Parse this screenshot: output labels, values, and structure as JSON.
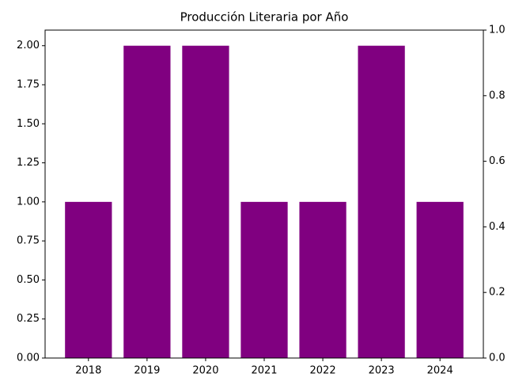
{
  "chart_data": {
    "type": "bar",
    "title": "Producción Literaria por Año",
    "categories": [
      "2018",
      "2019",
      "2020",
      "2021",
      "2022",
      "2023",
      "2024"
    ],
    "values": [
      1,
      2,
      2,
      1,
      1,
      2,
      1
    ],
    "color": "#800080",
    "ylim": [
      0,
      2.1
    ],
    "yticks": [
      {
        "value": 0,
        "label": "0.00"
      },
      {
        "value": 0.25,
        "label": "0.25"
      },
      {
        "value": 0.5,
        "label": "0.50"
      },
      {
        "value": 0.75,
        "label": "0.75"
      },
      {
        "value": 1,
        "label": "1.00"
      },
      {
        "value": 1.25,
        "label": "1.25"
      },
      {
        "value": 1.5,
        "label": "1.50"
      },
      {
        "value": 1.75,
        "label": "1.75"
      },
      {
        "value": 2,
        "label": "2.00"
      }
    ],
    "y2lim": [
      0,
      1
    ],
    "y2ticks": [
      {
        "value": 0,
        "label": "0.0"
      },
      {
        "value": 0.2,
        "label": "0.2"
      },
      {
        "value": 0.4,
        "label": "0.4"
      },
      {
        "value": 0.6,
        "label": "0.6"
      },
      {
        "value": 0.8,
        "label": "0.8"
      },
      {
        "value": 1,
        "label": "1.0"
      }
    ],
    "grid": false
  }
}
